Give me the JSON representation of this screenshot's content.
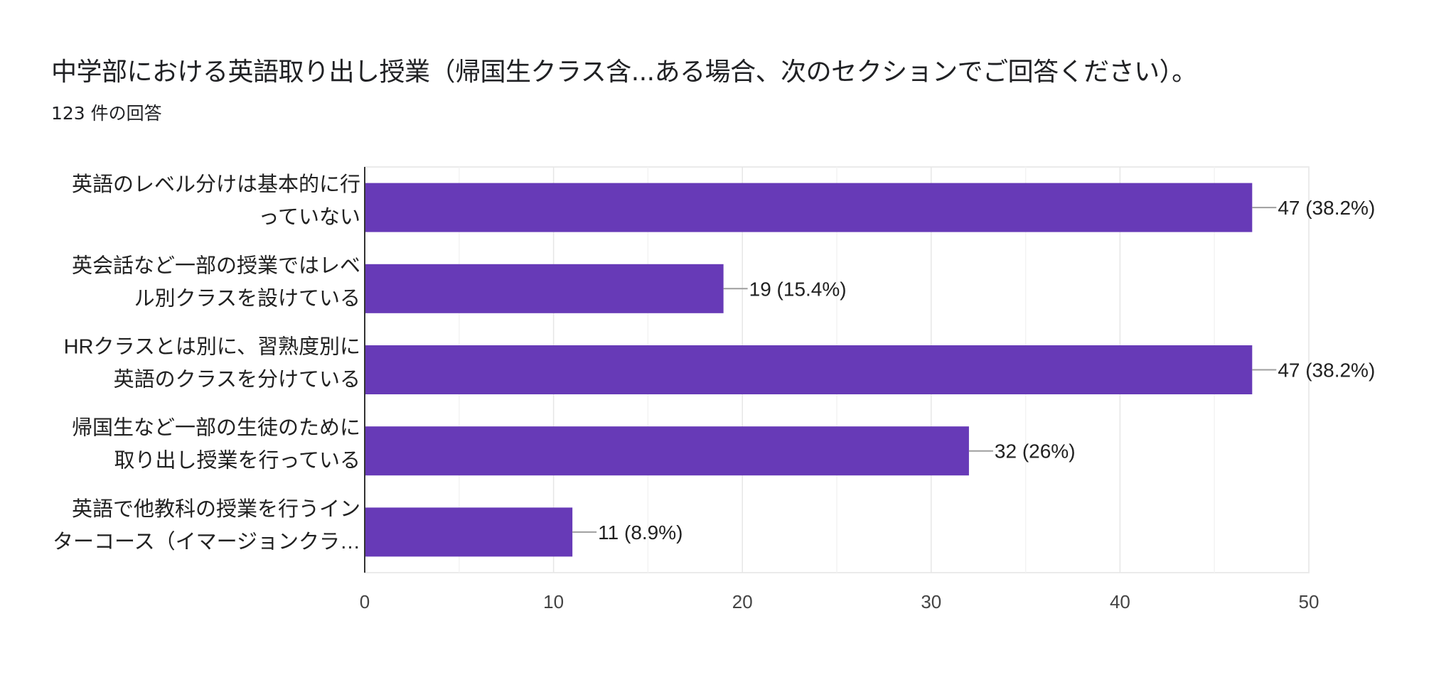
{
  "header": {
    "title": "中学部における英語取り出し授業（帰国生クラス含...ある場合、次のセクションでご回答ください）。",
    "response_count": "123 件の回答"
  },
  "chart_data": {
    "type": "bar",
    "orientation": "horizontal",
    "categories": [
      [
        "英語のレベル分けは基本的に行",
        "っていない"
      ],
      [
        "英会話など一部の授業ではレベ",
        "ル別クラスを設けている"
      ],
      [
        "HRクラスとは別に、習熟度別に",
        "英語のクラスを分けている"
      ],
      [
        "帰国生など一部の生徒のために",
        "取り出し授業を行っている"
      ],
      [
        "英語で他教科の授業を行うイン",
        "ターコース（イマージョンクラ…"
      ]
    ],
    "values": [
      47,
      19,
      47,
      32,
      11
    ],
    "data_labels": [
      "47 (38.2%)",
      "19 (15.4%)",
      "47 (38.2%)",
      "32 (26%)",
      "11 (8.9%)"
    ],
    "xlim": [
      0,
      50
    ],
    "xticks": [
      "0",
      "10",
      "20",
      "30",
      "40",
      "50"
    ],
    "grid": true,
    "bar_color": "#673ab7"
  }
}
